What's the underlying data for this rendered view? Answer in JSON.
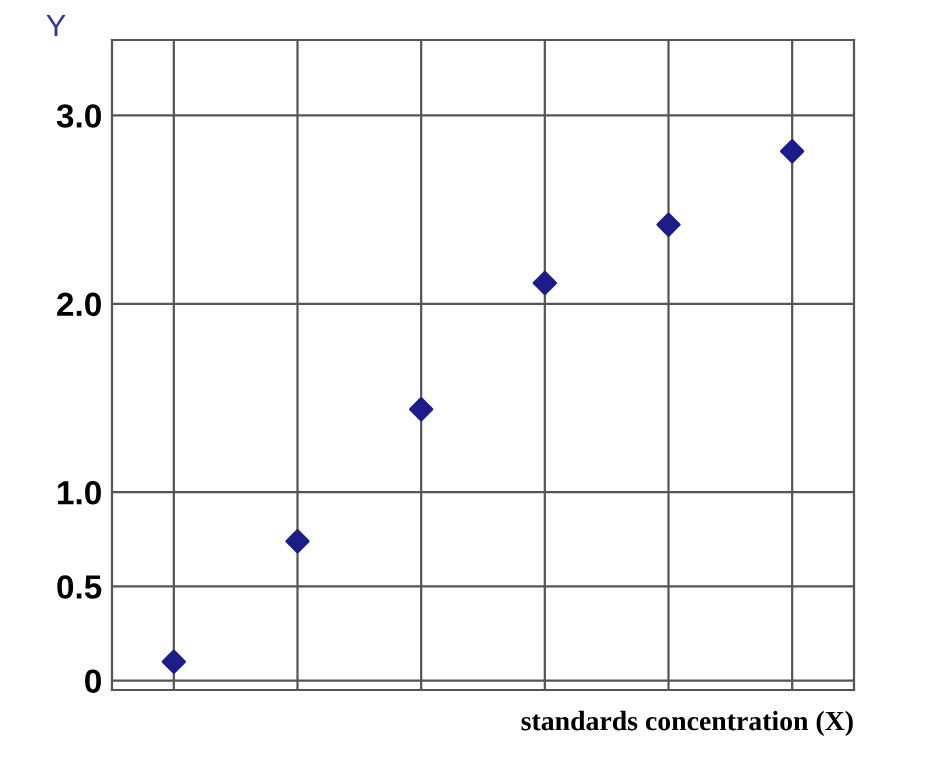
{
  "chart_data": {
    "type": "scatter",
    "xlabel": "standards concentration (X)",
    "ylabel": "Y",
    "categories": [
      null,
      null,
      null,
      null,
      null,
      null
    ],
    "series": [
      {
        "color": "#1c1c8a",
        "values": [
          0.1,
          0.74,
          1.44,
          2.11,
          2.42,
          2.81
        ]
      }
    ],
    "ylim": [
      -0.05,
      3.4
    ],
    "yticks": [
      0,
      0.5,
      {
        "value": 1,
        "label": "1.0"
      },
      {
        "value": 2,
        "label": "2.0"
      },
      {
        "value": 3,
        "label": "3.0"
      }
    ],
    "tick_labels": "y",
    "grid": true,
    "marker": "diamond"
  }
}
